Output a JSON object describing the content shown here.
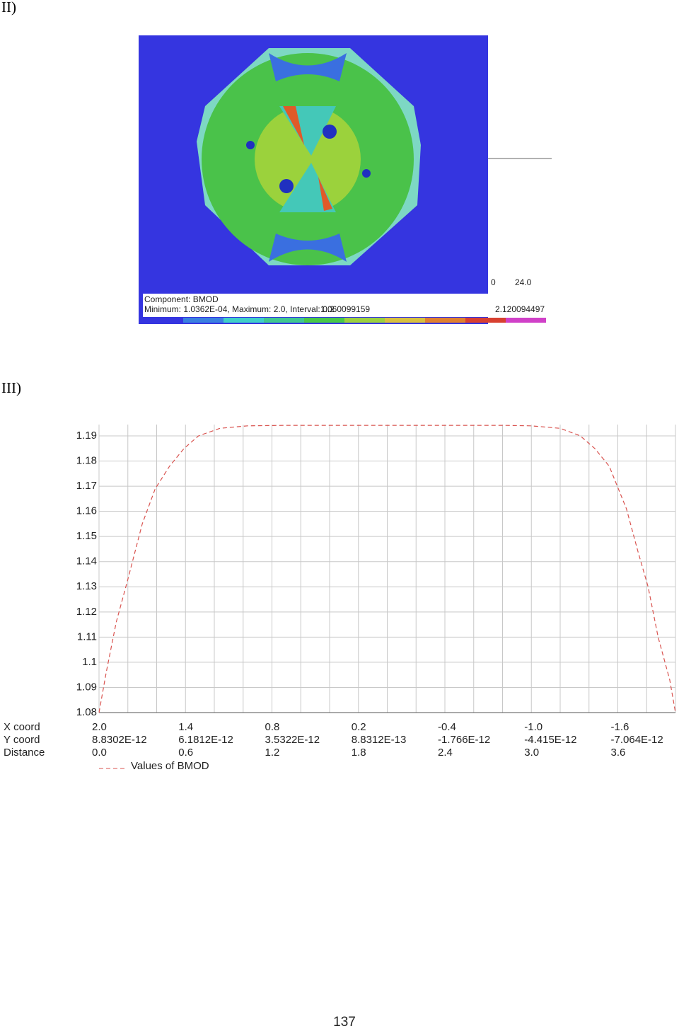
{
  "sections": {
    "figure_2": "II)",
    "figure_3": "III)"
  },
  "contour": {
    "component": "Component: BMOD",
    "range": "Minimum: 1.0362E-04,  Maximum: 2.0,  Interval: 0.2",
    "mid_value": "1.060099159",
    "max_value": "2.120094497",
    "scale_start": "0",
    "scale_end": "24.0"
  },
  "chart_data": {
    "type": "line",
    "x": [
      0,
      0.05,
      0.12,
      0.2,
      0.3,
      0.39,
      0.49,
      0.59,
      0.69,
      0.84,
      1.03,
      1.3,
      2.0,
      2.8,
      3.0,
      3.2,
      3.34,
      3.44,
      3.54,
      3.66,
      3.74,
      3.81,
      3.88,
      3.96,
      4.0
    ],
    "series": [
      {
        "name": "Values of BMOD",
        "color": "#d9534f",
        "dashed": true,
        "values": [
          1.08,
          1.096,
          1.116,
          1.133,
          1.155,
          1.169,
          1.178,
          1.185,
          1.19,
          1.193,
          1.194,
          1.1942,
          1.1942,
          1.1942,
          1.194,
          1.193,
          1.19,
          1.185,
          1.178,
          1.161,
          1.144,
          1.13,
          1.11,
          1.093,
          1.08
        ]
      }
    ],
    "xlim": [
      0,
      4.0
    ],
    "ylim": [
      1.08,
      1.1945
    ],
    "yticks": [
      1.08,
      1.09,
      1.1,
      1.11,
      1.12,
      1.13,
      1.14,
      1.15,
      1.16,
      1.17,
      1.18,
      1.19
    ],
    "xticks": [
      {
        "value": 0,
        "label": "0.0"
      },
      0.6,
      1.2,
      1.8,
      2.4,
      {
        "value": 3,
        "label": "3.0"
      },
      3.6
    ],
    "x_grid": [
      0.2,
      0.4,
      0.8,
      1.0,
      1.4,
      1.6,
      2.0,
      2.2,
      2.6,
      2.8,
      3.2,
      3.4,
      3.8,
      4.0
    ],
    "row_labels": [
      "X coord",
      "Y coord",
      "Distance"
    ],
    "x_coord_labels": [
      "2.0",
      "1.4",
      "0.8",
      "0.2",
      "-0.4",
      "-1.0",
      "-1.6"
    ],
    "y_coord_labels": [
      "8.8302E-12",
      "6.1812E-12",
      "3.5322E-12",
      "8.8312E-13",
      "-1.766E-12",
      "-4.415E-12",
      "-7.064E-12"
    ],
    "grid": true
  },
  "page_number": "137"
}
